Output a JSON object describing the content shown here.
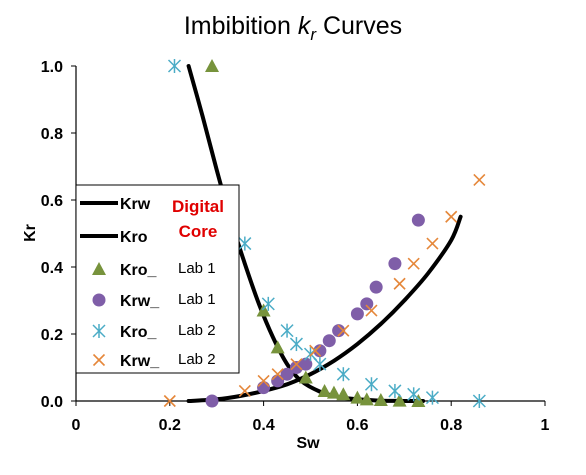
{
  "chart_data": {
    "type": "scatter",
    "title": "Imbibition",
    "title_symbol": "k",
    "title_symbol_sub": "r",
    "title_suffix": "Curves",
    "xlabel": "Sw",
    "ylabel": "Kr",
    "xlim": [
      0,
      1
    ],
    "ylim": [
      0,
      1
    ],
    "x_ticks": [
      "0",
      "0.2",
      "0.4",
      "0.6",
      "0.8",
      "1"
    ],
    "y_ticks": [
      "0.0",
      "0.2",
      "0.4",
      "0.6",
      "0.8",
      "1.0"
    ],
    "grid": false,
    "legend_position": "left",
    "annotation": [
      "Digital",
      "Core"
    ],
    "series": [
      {
        "name": "Krw",
        "kind": "line",
        "color": "#000000",
        "x": [
          0.24,
          0.3,
          0.35,
          0.4,
          0.45,
          0.5,
          0.55,
          0.6,
          0.65,
          0.7,
          0.75,
          0.8,
          0.82
        ],
        "y": [
          0.0,
          0.005,
          0.015,
          0.03,
          0.05,
          0.08,
          0.12,
          0.17,
          0.23,
          0.3,
          0.38,
          0.48,
          0.55
        ]
      },
      {
        "name": "Kro",
        "kind": "line",
        "color": "#000000",
        "x": [
          0.24,
          0.27,
          0.3,
          0.33,
          0.36,
          0.39,
          0.42,
          0.45,
          0.48,
          0.52,
          0.56,
          0.6,
          0.65,
          0.7,
          0.74
        ],
        "y": [
          1.0,
          0.85,
          0.69,
          0.54,
          0.41,
          0.29,
          0.19,
          0.11,
          0.06,
          0.028,
          0.012,
          0.005,
          0.001,
          0.0,
          0.0
        ]
      },
      {
        "name": "Kro_",
        "lab": "Lab 1",
        "kind": "triangle",
        "color": "#77933c",
        "x": [
          0.29,
          0.4,
          0.43,
          0.49,
          0.53,
          0.55,
          0.57,
          0.6,
          0.62,
          0.65,
          0.69,
          0.73
        ],
        "y": [
          1.0,
          0.27,
          0.16,
          0.07,
          0.03,
          0.025,
          0.02,
          0.01,
          0.005,
          0.003,
          0.001,
          0.0
        ]
      },
      {
        "name": "Krw_",
        "lab": "Lab 1",
        "kind": "circle",
        "color": "#7f5ea8",
        "x": [
          0.29,
          0.4,
          0.43,
          0.45,
          0.47,
          0.49,
          0.52,
          0.54,
          0.56,
          0.6,
          0.62,
          0.64,
          0.68,
          0.73
        ],
        "y": [
          0.0,
          0.04,
          0.06,
          0.08,
          0.1,
          0.11,
          0.15,
          0.18,
          0.21,
          0.26,
          0.29,
          0.34,
          0.41,
          0.54
        ]
      },
      {
        "name": "Kro_",
        "lab": "Lab 2",
        "kind": "asterisk",
        "color": "#4bacc6",
        "x": [
          0.21,
          0.36,
          0.41,
          0.45,
          0.47,
          0.5,
          0.52,
          0.57,
          0.63,
          0.68,
          0.72,
          0.76,
          0.86
        ],
        "y": [
          1.0,
          0.47,
          0.29,
          0.21,
          0.17,
          0.14,
          0.11,
          0.08,
          0.05,
          0.03,
          0.02,
          0.01,
          0.0
        ]
      },
      {
        "name": "Krw_",
        "lab": "Lab 2",
        "kind": "x",
        "color": "#e5873a",
        "x": [
          0.2,
          0.36,
          0.4,
          0.43,
          0.47,
          0.51,
          0.57,
          0.63,
          0.69,
          0.72,
          0.76,
          0.8,
          0.86
        ],
        "y": [
          0.0,
          0.03,
          0.06,
          0.08,
          0.11,
          0.15,
          0.21,
          0.27,
          0.35,
          0.41,
          0.47,
          0.55,
          0.66
        ]
      }
    ]
  }
}
